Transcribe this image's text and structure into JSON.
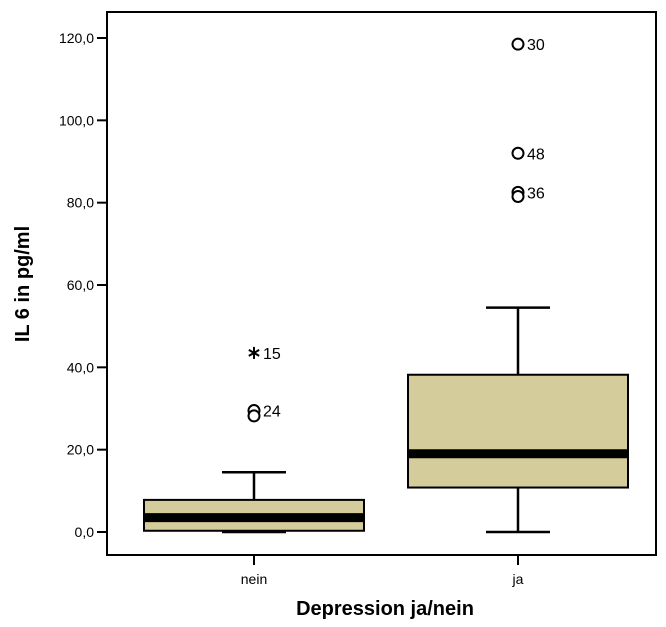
{
  "chart_data": {
    "type": "boxplot",
    "xlabel": "Depression ja/nein",
    "ylabel": "IL 6 in pg/ml",
    "ylim": [
      -5.5,
      128.5
    ],
    "yticks": [
      "0,0",
      "20,0",
      "40,0",
      "60,0",
      "80,0",
      "100,0",
      "120,0"
    ],
    "ytick_values": [
      0,
      20,
      40,
      60,
      80,
      100,
      120
    ],
    "box_color": "#d4cc9a",
    "categories": [
      "nein",
      "ja"
    ],
    "boxes": [
      {
        "category": "nein",
        "whisker_low": 0,
        "q1": 0.3,
        "median": 3.5,
        "q3": 7.8,
        "whisker_high": 14.5,
        "outliers": [
          {
            "value": 29.5,
            "label": "24",
            "marker": "circle"
          },
          {
            "value": 28.2,
            "label": "",
            "marker": "circle"
          },
          {
            "value": 43.5,
            "label": "15",
            "marker": "star"
          }
        ]
      },
      {
        "category": "ja",
        "whisker_low": 0,
        "q1": 10.8,
        "median": 19,
        "q3": 38.2,
        "whisker_high": 54.5,
        "outliers": [
          {
            "value": 118.5,
            "label": "30",
            "marker": "circle"
          },
          {
            "value": 92,
            "label": "48",
            "marker": "circle"
          },
          {
            "value": 82.5,
            "label": "36",
            "marker": "circle"
          },
          {
            "value": 81.5,
            "label": "",
            "marker": "circle"
          }
        ]
      }
    ]
  }
}
